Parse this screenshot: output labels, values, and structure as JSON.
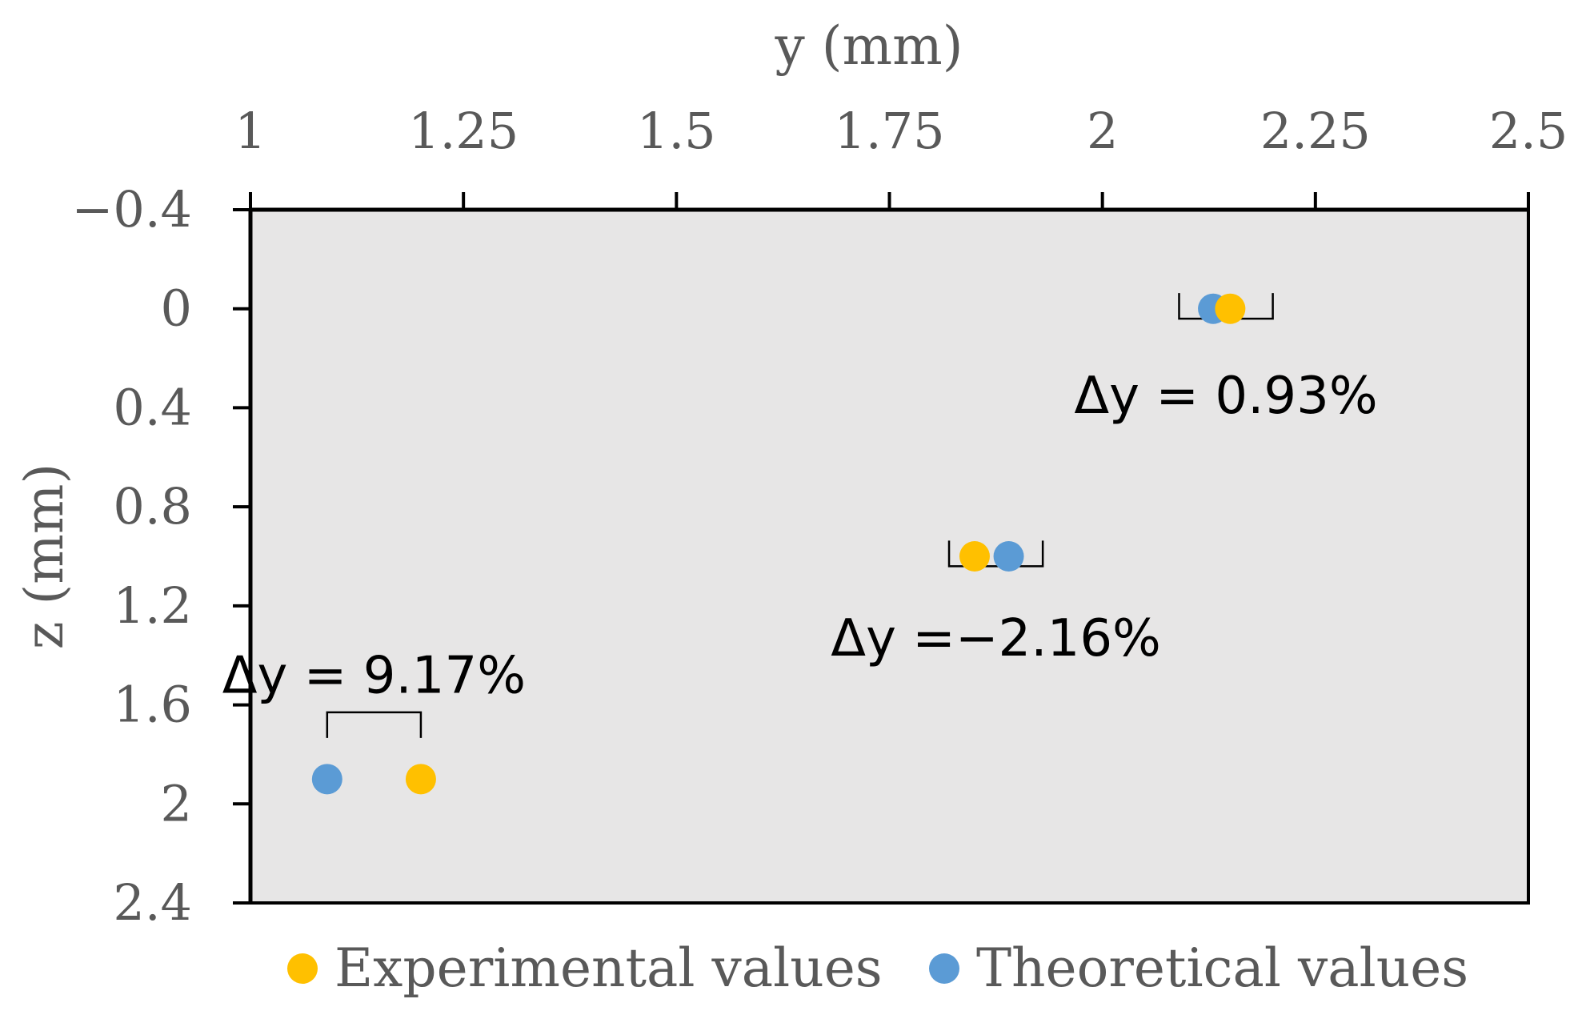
{
  "chart_data": {
    "type": "scatter",
    "title": "",
    "xlabel": "y (mm)",
    "ylabel": "z (mm)",
    "xlim": [
      1,
      2.5
    ],
    "ylim": [
      -0.4,
      2.4
    ],
    "y_reversed": true,
    "x_axis_position": "top",
    "x_ticks": [
      "1",
      "1.25",
      "1.5",
      "1.75",
      "2",
      "2.25",
      "2.5"
    ],
    "y_ticks": [
      "−0.4",
      "0",
      "0.4",
      "0.8",
      "1.2",
      "1.6",
      "2",
      "2.4"
    ],
    "grid": false,
    "legend_position": "bottom",
    "series": [
      {
        "name": "Experimental values",
        "color": "#FFC000",
        "points": [
          {
            "x": 2.15,
            "y": 0
          },
          {
            "x": 1.85,
            "y": 1
          },
          {
            "x": 1.2,
            "y": 1.9
          }
        ]
      },
      {
        "name": "Theoretical values",
        "color": "#5B9BD5",
        "points": [
          {
            "x": 2.13,
            "y": 0
          },
          {
            "x": 1.89,
            "y": 1
          },
          {
            "x": 1.09,
            "y": 1.9
          }
        ]
      }
    ],
    "annotations": [
      {
        "text": "Δy = 0.93%",
        "x_from": 2.09,
        "x_to": 2.2,
        "y": 0.04,
        "label_y": 0.35,
        "bracket": "up"
      },
      {
        "text": "Δy =−2.16%",
        "x_from": 1.82,
        "x_to": 1.93,
        "y": 1.04,
        "label_y": 1.33,
        "bracket": "up"
      },
      {
        "text": "Δy = 9.17%",
        "x_from": 1.09,
        "x_to": 1.2,
        "y": 1.63,
        "label_y": 1.48,
        "bracket": "down"
      }
    ]
  }
}
